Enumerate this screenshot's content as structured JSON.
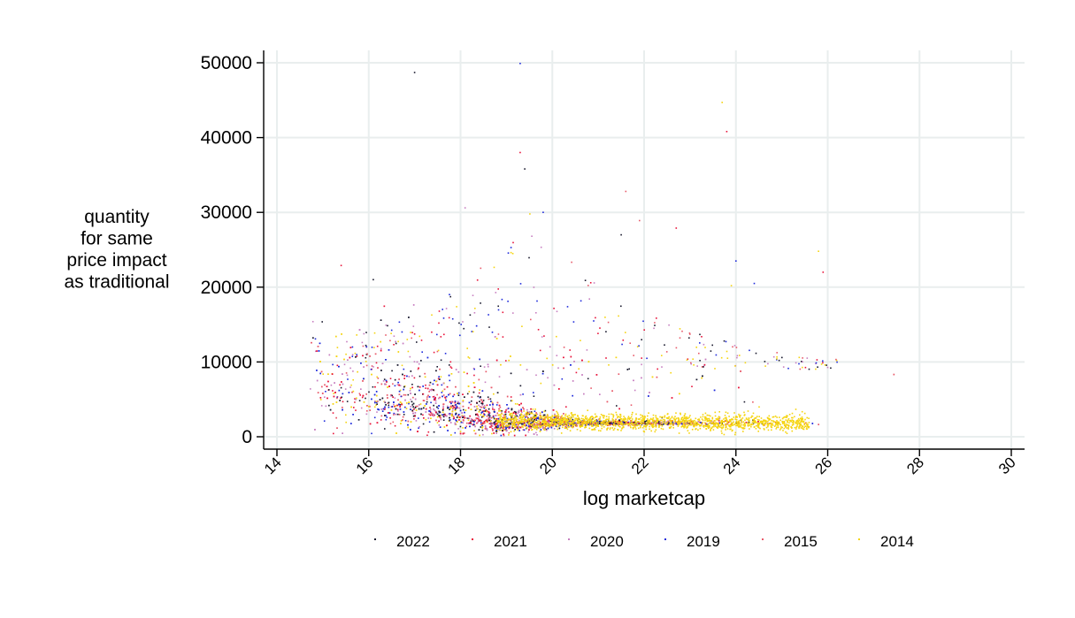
{
  "chart_data": {
    "type": "scatter",
    "ylabel_lines": [
      "quantity",
      "for same",
      "price impact",
      "as traditional"
    ],
    "xlabel": "log marketcap",
    "xlim": [
      14,
      30
    ],
    "ylim": [
      0,
      50000
    ],
    "x_ticks": [
      "14",
      "16",
      "18",
      "20",
      "22",
      "24",
      "26",
      "28",
      "30"
    ],
    "y_ticks": [
      "0",
      "10000",
      "20000",
      "30000",
      "40000",
      "50000"
    ],
    "grid": true,
    "legend_position": "bottom",
    "series": [
      {
        "name": "2022",
        "color": "#1a1a2e"
      },
      {
        "name": "2021",
        "color": "#e8133a"
      },
      {
        "name": "2020",
        "color": "#c77fc0"
      },
      {
        "name": "2019",
        "color": "#1e2adb"
      },
      {
        "name": "2015",
        "color": "#e85a6a"
      },
      {
        "name": "2014",
        "color": "#f5d40f"
      }
    ],
    "outliers": [
      {
        "x": 17.0,
        "y": 48700,
        "series": "2022"
      },
      {
        "x": 19.3,
        "y": 49900,
        "series": "2019"
      },
      {
        "x": 19.3,
        "y": 38000,
        "series": "2021"
      },
      {
        "x": 19.4,
        "y": 35800,
        "series": "2022"
      },
      {
        "x": 23.7,
        "y": 44700,
        "series": "2014"
      },
      {
        "x": 23.8,
        "y": 40800,
        "series": "2021"
      },
      {
        "x": 18.1,
        "y": 30600,
        "series": "2020"
      },
      {
        "x": 19.8,
        "y": 30000,
        "series": "2019"
      },
      {
        "x": 21.6,
        "y": 32800,
        "series": "2015"
      },
      {
        "x": 22.7,
        "y": 27900,
        "series": "2021"
      },
      {
        "x": 21.9,
        "y": 28900,
        "series": "2015"
      },
      {
        "x": 24.0,
        "y": 23500,
        "series": "2019"
      },
      {
        "x": 15.4,
        "y": 22900,
        "series": "2021"
      },
      {
        "x": 25.9,
        "y": 22000,
        "series": "2021"
      },
      {
        "x": 25.8,
        "y": 24800,
        "series": "2014"
      },
      {
        "x": 16.1,
        "y": 21000,
        "series": "2022"
      },
      {
        "x": 24.4,
        "y": 20500,
        "series": "2019"
      },
      {
        "x": 23.9,
        "y": 20200,
        "series": "2014"
      },
      {
        "x": 19.1,
        "y": 25300,
        "series": "2019"
      },
      {
        "x": 21.5,
        "y": 27000,
        "series": "2022"
      }
    ]
  }
}
